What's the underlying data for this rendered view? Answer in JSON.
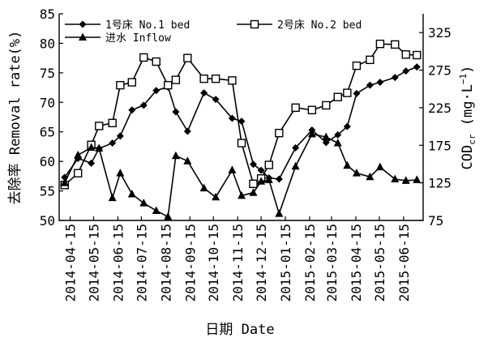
{
  "chart_data": {
    "type": "line",
    "xlabel": "日期 Date",
    "ylabel": "去除率 Removal rate(%)",
    "y2label_main": "COD",
    "y2label_sub": "cr",
    "y2label_unit": " (mg·L",
    "y2label_sup": "−1",
    "y2label_close": ")",
    "ylim": [
      50,
      85
    ],
    "y2lim": [
      75,
      350
    ],
    "yticks": [
      "50",
      "55",
      "60",
      "65",
      "70",
      "75",
      "80",
      "85"
    ],
    "y2ticks": [
      "75",
      "125",
      "175",
      "225",
      "275",
      "325"
    ],
    "xlim": [
      "2014-04-01",
      "2015-07-10"
    ],
    "xticks": [
      "2014-04-15",
      "2014-05-15",
      "2014-06-15",
      "2014-07-15",
      "2014-08-15",
      "2014-09-15",
      "2014-10-15",
      "2014-11-15",
      "2014-12-15",
      "2015-01-15",
      "2015-02-15",
      "2015-03-15",
      "2015-04-15",
      "2015-05-15",
      "2015-06-15"
    ],
    "legend_position": "top",
    "series": [
      {
        "name": "1号床 No.1 bed",
        "axis": "left",
        "marker": "diamond",
        "x": [
          "2014-04-08",
          "2014-04-25",
          "2014-05-12",
          "2014-05-22",
          "2014-06-08",
          "2014-06-18",
          "2014-07-03",
          "2014-07-18",
          "2014-08-03",
          "2014-08-18",
          "2014-08-28",
          "2014-09-12",
          "2014-10-03",
          "2014-10-18",
          "2014-11-08",
          "2014-11-20",
          "2014-12-05",
          "2014-12-15",
          "2014-12-25",
          "2015-01-07",
          "2015-01-28",
          "2015-02-18",
          "2015-03-08",
          "2015-03-23",
          "2015-04-04",
          "2015-04-16",
          "2015-05-03",
          "2015-05-16",
          "2015-06-04",
          "2015-06-18",
          "2015-07-02"
        ],
        "values": [
          57.3,
          60.5,
          59.7,
          62.2,
          63.1,
          64.3,
          68.7,
          69.5,
          72.0,
          72.6,
          68.4,
          65.1,
          71.6,
          70.5,
          67.3,
          66.8,
          59.5,
          58.5,
          57.2,
          57.0,
          62.3,
          65.3,
          63.2,
          64.5,
          65.9,
          71.5,
          72.9,
          73.4,
          74.2,
          75.3,
          76.0
        ]
      },
      {
        "name": "2号床 No.2 bed",
        "axis": "left",
        "marker": "square",
        "x": [
          "2014-04-08",
          "2014-04-25",
          "2014-05-12",
          "2014-05-22",
          "2014-06-08",
          "2014-06-18",
          "2014-07-03",
          "2014-07-18",
          "2014-08-03",
          "2014-08-18",
          "2014-08-28",
          "2014-09-12",
          "2014-10-03",
          "2014-10-18",
          "2014-11-08",
          "2014-11-20",
          "2014-12-05",
          "2014-12-15",
          "2014-12-25",
          "2015-01-07",
          "2015-01-28",
          "2015-02-18",
          "2015-03-08",
          "2015-03-23",
          "2015-04-04",
          "2015-04-16",
          "2015-05-03",
          "2015-05-16",
          "2015-06-04",
          "2015-06-18",
          "2015-07-02"
        ],
        "values": [
          56.0,
          58.0,
          62.8,
          66.0,
          66.5,
          72.9,
          73.4,
          77.6,
          76.9,
          72.9,
          73.8,
          77.5,
          74.0,
          74.0,
          73.7,
          63.1,
          56.2,
          57.1,
          59.4,
          64.8,
          69.1,
          68.7,
          69.5,
          70.9,
          71.6,
          76.2,
          77.2,
          79.9,
          79.8,
          78.1,
          78.0
        ]
      },
      {
        "name": "进水 Inflow",
        "axis": "right",
        "marker": "triangle",
        "x": [
          "2014-04-08",
          "2014-04-25",
          "2014-05-12",
          "2014-05-22",
          "2014-06-08",
          "2014-06-18",
          "2014-07-03",
          "2014-07-18",
          "2014-08-03",
          "2014-08-18",
          "2014-08-28",
          "2014-09-12",
          "2014-10-03",
          "2014-10-18",
          "2014-11-08",
          "2014-11-20",
          "2014-12-05",
          "2014-12-15",
          "2014-12-25",
          "2015-01-07",
          "2015-01-28",
          "2015-02-18",
          "2015-03-08",
          "2015-03-23",
          "2015-04-04",
          "2015-04-16",
          "2015-05-03",
          "2015-05-16",
          "2015-06-04",
          "2015-06-18",
          "2015-07-02"
        ],
        "values": [
          125,
          162,
          172,
          171,
          105,
          138,
          110,
          98,
          88,
          80,
          161,
          154,
          118,
          106,
          142,
          108,
          112,
          127,
          129,
          84,
          147,
          190,
          186,
          178,
          148,
          138,
          133,
          146,
          130,
          128,
          129
        ]
      }
    ]
  }
}
